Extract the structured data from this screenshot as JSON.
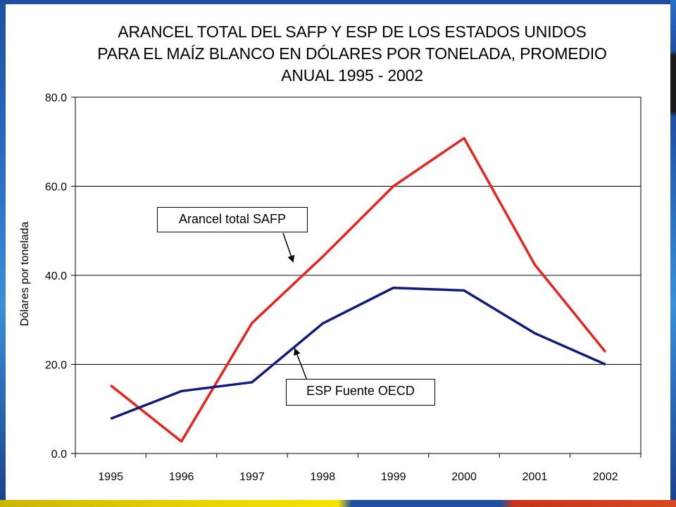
{
  "chart_data": {
    "type": "line",
    "title_lines": [
      "ARANCEL TOTAL DEL SAFP Y ESP DE LOS ESTADOS UNIDOS",
      "PARA EL MAÍZ BLANCO EN DÓLARES POR TONELADA, PROMEDIO",
      "ANUAL 1995 - 2002"
    ],
    "xlabel": "",
    "ylabel": "Dólares por tonelada",
    "categories": [
      "1995",
      "1996",
      "1997",
      "1998",
      "1999",
      "2000",
      "2001",
      "2002"
    ],
    "ylim": [
      0,
      80
    ],
    "yticks": [
      "0.0",
      "20.0",
      "40.0",
      "60.0",
      "80.0"
    ],
    "grid": true,
    "legend": "none",
    "series": [
      {
        "name": "Arancel total SAFP",
        "color": "#e8231f",
        "values": [
          15.3,
          2.7,
          29.3,
          44.2,
          60.0,
          70.8,
          42.4,
          22.8
        ]
      },
      {
        "name": "ESP Fuente OECD",
        "color": "#0f1a7a",
        "values": [
          7.8,
          14.0,
          16.0,
          29.2,
          37.2,
          36.6,
          27.0,
          20.0
        ]
      }
    ],
    "annotations": [
      {
        "text": "Arancel total SAFP",
        "points_to": "Arancel total SAFP"
      },
      {
        "text": "ESP Fuente OECD",
        "points_to": "ESP Fuente OECD"
      }
    ]
  }
}
